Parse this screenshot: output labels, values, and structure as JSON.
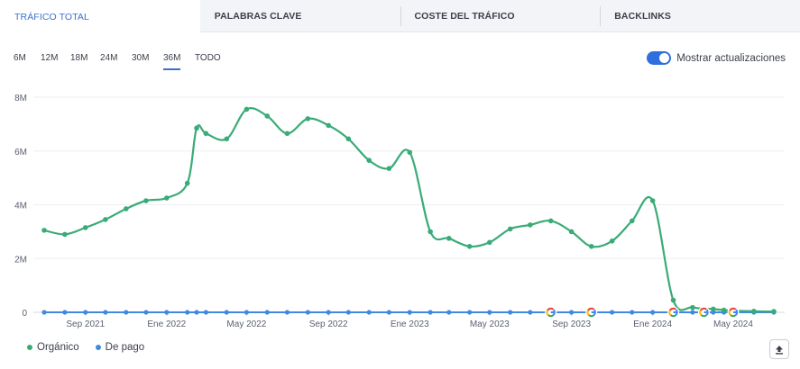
{
  "tabs": [
    {
      "label": "TRÁFICO TOTAL",
      "active": true
    },
    {
      "label": "PALABRAS CLAVE",
      "active": false
    },
    {
      "label": "COSTE DEL TRÁFICO",
      "active": false
    },
    {
      "label": "BACKLINKS",
      "active": false
    }
  ],
  "periods": [
    {
      "label": "6M",
      "active": false
    },
    {
      "label": "12M",
      "active": false
    },
    {
      "label": "18M",
      "active": false
    },
    {
      "label": "24M",
      "active": false
    },
    {
      "label": "30M",
      "active": false
    },
    {
      "label": "36M",
      "active": true
    },
    {
      "label": "TODO",
      "active": false
    }
  ],
  "toggle": {
    "label": "Mostrar actualizaciones",
    "on": true
  },
  "legend": [
    {
      "label": "Orgánico",
      "color": "#3aab77"
    },
    {
      "label": "De pago",
      "color": "#3f8ae0"
    }
  ],
  "export_icon": "upload-icon",
  "chart_data": {
    "type": "line",
    "y_ticks": [
      "0",
      "2M",
      "4M",
      "6M",
      "8M"
    ],
    "ylim": [
      0,
      8000000
    ],
    "x_tick_labels": [
      "Sep 2021",
      "Ene 2022",
      "May 2022",
      "Sep 2022",
      "Ene 2023",
      "May 2023",
      "Sep 2023",
      "Ene 2024",
      "May 2024"
    ],
    "x": [
      "2021-07-15",
      "2021-08-15",
      "2021-09-15",
      "2021-10-15",
      "2021-11-15",
      "2021-12-15",
      "2022-01-15",
      "2022-02-15",
      "2022-03-01",
      "2022-03-15",
      "2022-04-15",
      "2022-05-15",
      "2022-06-15",
      "2022-07-15",
      "2022-08-15",
      "2022-09-15",
      "2022-10-15",
      "2022-11-15",
      "2022-12-15",
      "2023-01-15",
      "2023-02-15",
      "2023-03-15",
      "2023-04-15",
      "2023-05-15",
      "2023-06-15",
      "2023-07-15",
      "2023-08-15",
      "2023-09-15",
      "2023-10-15",
      "2023-11-15",
      "2023-12-15",
      "2024-01-15",
      "2024-02-15",
      "2024-03-15",
      "2024-04-15",
      "2024-05-01",
      "2024-05-15",
      "2024-06-15",
      "2024-07-15"
    ],
    "grid": true,
    "legend_position": "bottom-left",
    "series": [
      {
        "name": "Orgánico",
        "color": "#3aab77",
        "values": [
          3050000,
          2900000,
          3150000,
          3450000,
          3850000,
          4150000,
          4250000,
          4800000,
          6850000,
          6650000,
          6450000,
          7550000,
          7300000,
          6650000,
          7200000,
          6950000,
          6450000,
          5650000,
          5350000,
          5950000,
          3000000,
          2750000,
          2450000,
          2600000,
          3100000,
          3250000,
          3400000,
          3000000,
          2450000,
          2650000,
          3400000,
          4150000,
          450000,
          180000,
          120000,
          80000,
          60000,
          40000,
          30000
        ]
      },
      {
        "name": "De pago",
        "color": "#3f8ae0",
        "values": [
          0,
          0,
          0,
          0,
          0,
          0,
          0,
          0,
          0,
          0,
          0,
          0,
          0,
          0,
          0,
          0,
          0,
          0,
          0,
          0,
          0,
          0,
          0,
          0,
          0,
          0,
          0,
          0,
          0,
          0,
          0,
          0,
          0,
          0,
          0,
          0,
          0,
          0,
          0
        ]
      }
    ],
    "update_markers": [
      "2023-08-15",
      "2023-10-15",
      "2024-02-15",
      "2024-04-01",
      "2024-05-15"
    ]
  }
}
